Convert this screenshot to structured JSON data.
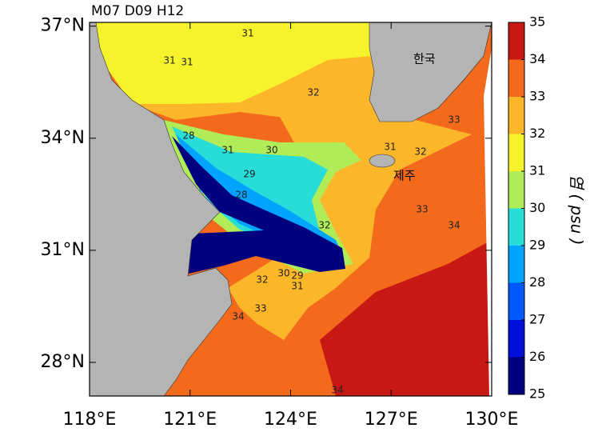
{
  "map": {
    "title": "M07 D09 H12",
    "xlim": [
      118,
      130
    ],
    "ylim": [
      27.1,
      37.1
    ],
    "xticks": [
      {
        "value": 118,
        "label": "118°E"
      },
      {
        "value": 121,
        "label": "121°E"
      },
      {
        "value": 124,
        "label": "124°E"
      },
      {
        "value": 127,
        "label": "127°E"
      },
      {
        "value": 130,
        "label": "130°E"
      }
    ],
    "yticks": [
      {
        "value": 28,
        "label": "28°N"
      },
      {
        "value": 31,
        "label": "31°N"
      },
      {
        "value": 34,
        "label": "34°N"
      },
      {
        "value": 37,
        "label": "37°N"
      }
    ],
    "colorbar": {
      "lim": [
        25,
        35
      ],
      "ticks": [
        25,
        26,
        27,
        28,
        29,
        30,
        31,
        32,
        33,
        34,
        35
      ],
      "colors": [
        "#00007f",
        "#0010d8",
        "#0058ff",
        "#00a4ff",
        "#28dcd8",
        "#b0ec58",
        "#f6f22c",
        "#fcb62a",
        "#f36a1c",
        "#c81814"
      ],
      "label": "염 ( psu )"
    },
    "places": [
      "한국",
      "제주"
    ],
    "contour_labels": [
      31,
      31,
      31,
      32,
      28,
      31,
      30,
      29,
      28,
      31,
      32,
      33,
      33,
      34,
      32,
      29,
      30,
      31,
      32,
      33,
      34,
      34
    ]
  }
}
